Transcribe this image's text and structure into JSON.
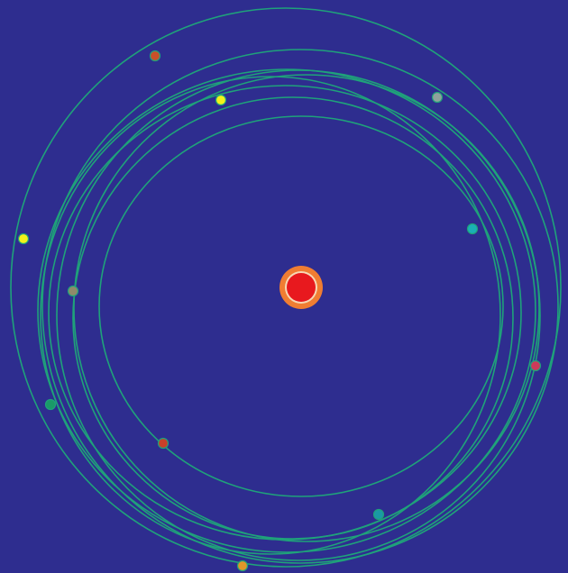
{
  "scene": {
    "background_color": "#2e2d8f",
    "orbit_color": "#1fa27a",
    "star": {
      "name": "central-star",
      "core_color": "#e8191e",
      "ring_color": "#f7d8b4",
      "halo_color": "#f07d32"
    },
    "planets": [
      {
        "name": "planet-1",
        "color": "#c8502a"
      },
      {
        "name": "planet-2",
        "color": "#f2f21a"
      },
      {
        "name": "planet-3",
        "color": "#8fa39c"
      },
      {
        "name": "planet-4",
        "color": "#f2f21a"
      },
      {
        "name": "planet-5",
        "color": "#1ab0b5"
      },
      {
        "name": "planet-6",
        "color": "#8f8a6a"
      },
      {
        "name": "planet-7",
        "color": "#cc3a5a"
      },
      {
        "name": "planet-8",
        "color": "#1a9a68"
      },
      {
        "name": "planet-9",
        "color": "#c8402a"
      },
      {
        "name": "planet-10",
        "color": "#1a9aa5"
      },
      {
        "name": "planet-11",
        "color": "#e0962a"
      }
    ]
  }
}
